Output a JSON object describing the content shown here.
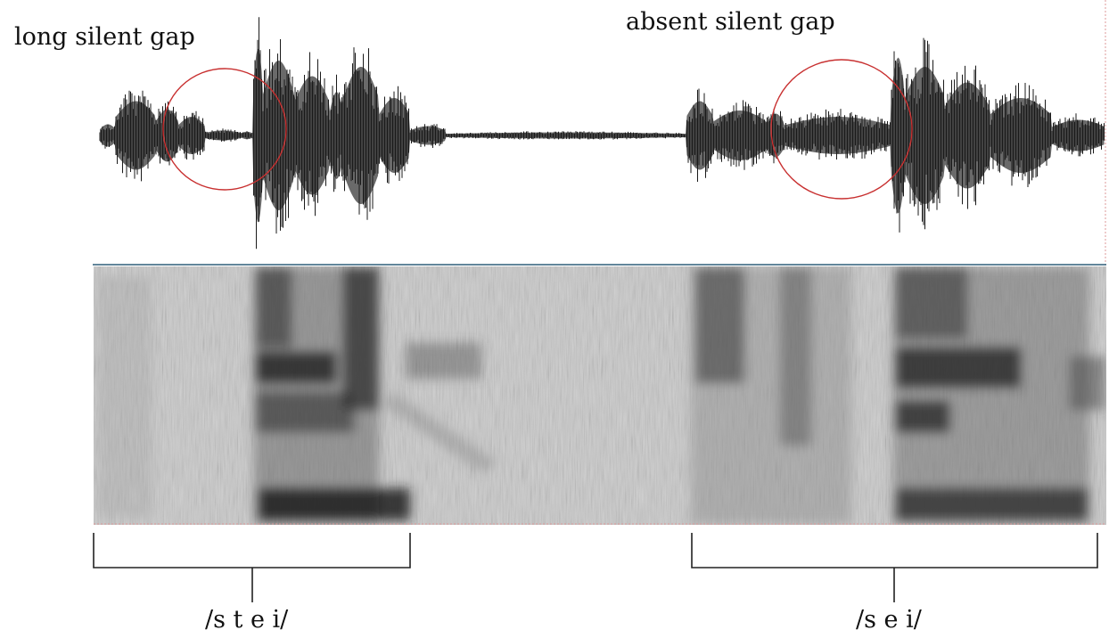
{
  "annotations": {
    "long_gap": "long silent gap",
    "absent_gap": "absent silent gap"
  },
  "transcriptions": {
    "first": "/s t e i/",
    "second": "/s e i/"
  },
  "colors": {
    "waveform": "#1a1a1a",
    "waveform_fill": "#6a6a6a",
    "circle": "#c83030",
    "divider": "#2e5f78",
    "spectrogram_bg": "#c8c8c8",
    "bracket": "#222222"
  }
}
